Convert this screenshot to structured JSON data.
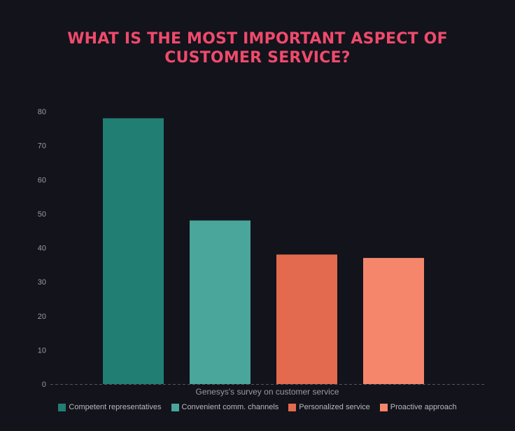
{
  "chart_data": {
    "type": "bar",
    "title_lines": [
      "WHAT IS THE MOST IMPORTANT ASPECT OF",
      "CUSTOMER SERVICE?"
    ],
    "categories": [
      "Genesys's survey on customer service"
    ],
    "xlabel": "Genesys's survey on customer service",
    "ylabel": "",
    "ylim": [
      0,
      80
    ],
    "yticks": [
      0,
      10,
      20,
      30,
      40,
      50,
      60,
      70,
      80
    ],
    "grid": false,
    "legend_position": "bottom",
    "series": [
      {
        "name": "Competent representatives",
        "values": [
          78
        ],
        "color": "#217e73"
      },
      {
        "name": "Convenient comm. channels",
        "values": [
          48
        ],
        "color": "#4aa59a"
      },
      {
        "name": "Personalized service",
        "values": [
          38
        ],
        "color": "#e36a4e"
      },
      {
        "name": "Proactive approach",
        "values": [
          37
        ],
        "color": "#f5866c"
      }
    ]
  },
  "colors": {
    "background": "#13131b",
    "title": "#ef4a6c",
    "axis_text": "#9a9aa4",
    "baseline": "#55555e"
  }
}
